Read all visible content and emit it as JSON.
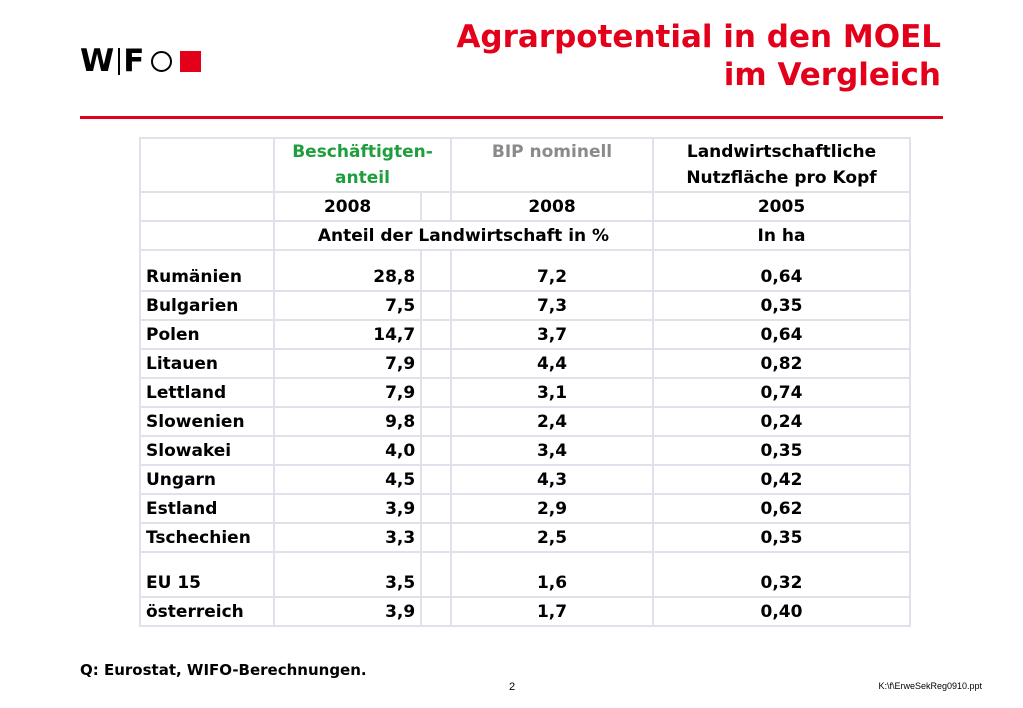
{
  "logo": {
    "text_w": "W",
    "text_f": "F"
  },
  "title": {
    "line1": "Agrarpotential in den MOEL",
    "line2": "im Vergleich"
  },
  "colors": {
    "accent": "#e3001b",
    "green_header": "#1e9e3c",
    "gray_header": "#8a8a8a",
    "grid": "#dfe2ea"
  },
  "table": {
    "header": {
      "col1_line1": "Beschäftigten-",
      "col1_line2": "anteil",
      "col2": "BIP nominell",
      "col3_line1": "Landwirtschaftliche",
      "col3_line2": "Nutzfläche pro Kopf"
    },
    "years": {
      "col1": "2008",
      "col2": "2008",
      "col3": "2005"
    },
    "units": {
      "share": "Anteil der Landwirtschaft in %",
      "area": "In ha"
    },
    "rows": [
      {
        "country": "Rumänien",
        "employment": "28,8",
        "gdp": "7,2",
        "area": "0,64"
      },
      {
        "country": "Bulgarien",
        "employment": "7,5",
        "gdp": "7,3",
        "area": "0,35"
      },
      {
        "country": "Polen",
        "employment": "14,7",
        "gdp": "3,7",
        "area": "0,64"
      },
      {
        "country": "Litauen",
        "employment": "7,9",
        "gdp": "4,4",
        "area": "0,82"
      },
      {
        "country": "Lettland",
        "employment": "7,9",
        "gdp": "3,1",
        "area": "0,74"
      },
      {
        "country": "Slowenien",
        "employment": "9,8",
        "gdp": "2,4",
        "area": "0,24"
      },
      {
        "country": "Slowakei",
        "employment": "4,0",
        "gdp": "3,4",
        "area": "0,35"
      },
      {
        "country": "Ungarn",
        "employment": "4,5",
        "gdp": "4,3",
        "area": "0,42"
      },
      {
        "country": "Estland",
        "employment": "3,9",
        "gdp": "2,9",
        "area": "0,62"
      },
      {
        "country": "Tschechien",
        "employment": "3,3",
        "gdp": "2,5",
        "area": "0,35"
      },
      {
        "country": "EU 15",
        "employment": "3,5",
        "gdp": "1,6",
        "area": "0,32"
      },
      {
        "country": "österreich",
        "employment": "3,9",
        "gdp": "1,7",
        "area": "0,40"
      }
    ]
  },
  "footer": {
    "source": "Q: Eurostat, WIFO-Berechnungen.",
    "page": "2",
    "file": "K:\\f\\ErweSekReg0910.ppt"
  }
}
